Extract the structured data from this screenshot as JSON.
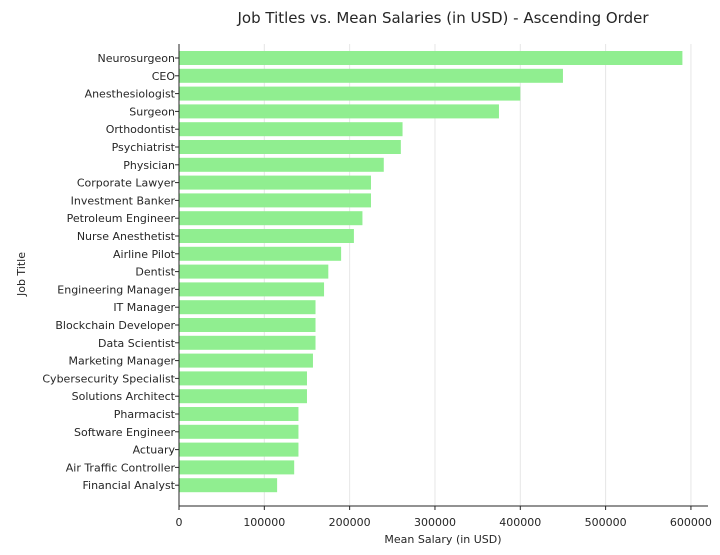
{
  "chart_data": {
    "type": "bar",
    "orientation": "horizontal",
    "title": "Job Titles vs. Mean Salaries (in USD) - Ascending Order",
    "xlabel": "Mean Salary (in USD)",
    "ylabel": "Job Title",
    "xlim": [
      0,
      620000
    ],
    "xticks": [
      0,
      100000,
      200000,
      300000,
      400000,
      500000,
      600000
    ],
    "grid": true,
    "legend": "none",
    "bar_color": "#90ee90",
    "categories": [
      "Neurosurgeon",
      "CEO",
      "Anesthesiologist",
      "Surgeon",
      "Orthodontist",
      "Psychiatrist",
      "Physician",
      "Corporate Lawyer",
      "Investment Banker",
      "Petroleum Engineer",
      "Nurse Anesthetist",
      "Airline Pilot",
      "Dentist",
      "Engineering Manager",
      "IT Manager",
      "Blockchain Developer",
      "Data Scientist",
      "Marketing Manager",
      "Cybersecurity Specialist",
      "Solutions Architect",
      "Pharmacist",
      "Software Engineer",
      "Actuary",
      "Air Traffic Controller",
      "Financial Analyst"
    ],
    "values": [
      590000,
      450000,
      400000,
      375000,
      262000,
      260000,
      240000,
      225000,
      225000,
      215000,
      205000,
      190000,
      175000,
      170000,
      160000,
      160000,
      160000,
      157000,
      150000,
      150000,
      140000,
      140000,
      140000,
      135000,
      115000
    ]
  }
}
